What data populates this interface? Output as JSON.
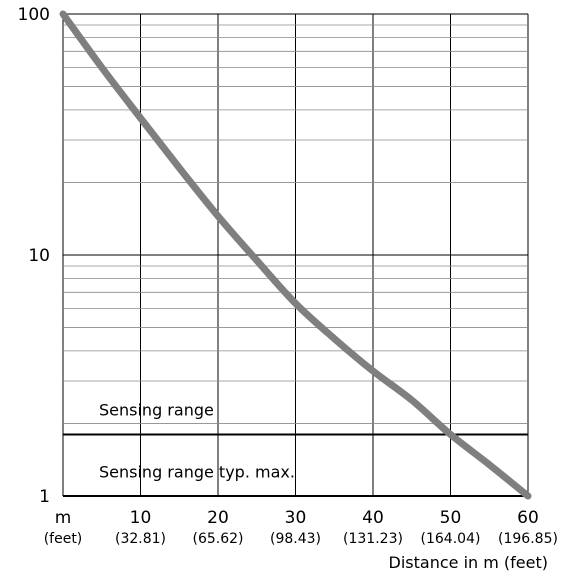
{
  "chart_data": {
    "type": "line",
    "title": "",
    "xlabel": "Distance in m (feet)",
    "ylabel": "",
    "x_unit_label": "m",
    "x_unit_sublabel": "(feet)",
    "xlim": [
      0,
      60
    ],
    "ylim": [
      1,
      100
    ],
    "yscale": "log",
    "grid": true,
    "x_ticks": [
      {
        "value": 10,
        "label": "10",
        "sublabel": "(32.81)"
      },
      {
        "value": 20,
        "label": "20",
        "sublabel": "(65.62)"
      },
      {
        "value": 30,
        "label": "30",
        "sublabel": "(98.43)"
      },
      {
        "value": 40,
        "label": "40",
        "sublabel": "(131.23)"
      },
      {
        "value": 50,
        "label": "50",
        "sublabel": "(164.04)"
      },
      {
        "value": 60,
        "label": "60",
        "sublabel": "(196.85)"
      }
    ],
    "y_ticks": [
      {
        "value": 1,
        "label": "1"
      },
      {
        "value": 10,
        "label": "10"
      },
      {
        "value": 100,
        "label": "100"
      }
    ],
    "threshold": {
      "value": 1.8
    },
    "band_labels": {
      "upper": "Sensing range",
      "lower": "Sensing range typ. max."
    },
    "series": [
      {
        "color": "#7f7f7f",
        "x": [
          0,
          5,
          10,
          15,
          20,
          25,
          30,
          35,
          40,
          45,
          50,
          55,
          60
        ],
        "y": [
          100,
          60,
          37,
          23,
          14.5,
          9.5,
          6.3,
          4.5,
          3.3,
          2.5,
          1.8,
          1.35,
          1.0
        ]
      }
    ]
  }
}
